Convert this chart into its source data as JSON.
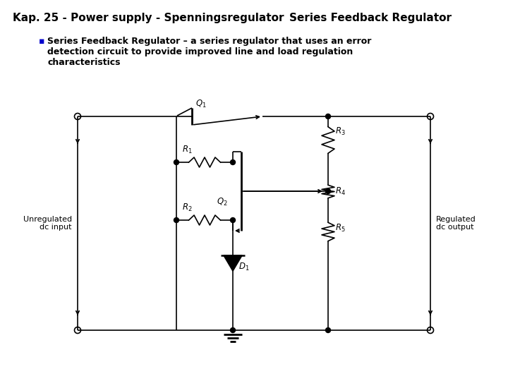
{
  "title_left": "Kap. 25 - Power supply - Spenningsregulator",
  "title_right": "Series Feedback Regulator",
  "bg_color": "#ffffff",
  "line_color": "#000000",
  "label_unregulated": "Unregulated\ndc input",
  "label_regulated": "Regulated\ndc output",
  "label_Q1": "$Q_1$",
  "label_Q2": "$Q_2$",
  "label_R1": "$R_1$",
  "label_R2": "$R_2$",
  "label_R3": "$R_3$",
  "label_R4": "$R_4$",
  "label_R5": "$R_5$",
  "label_D1": "$D_1$"
}
